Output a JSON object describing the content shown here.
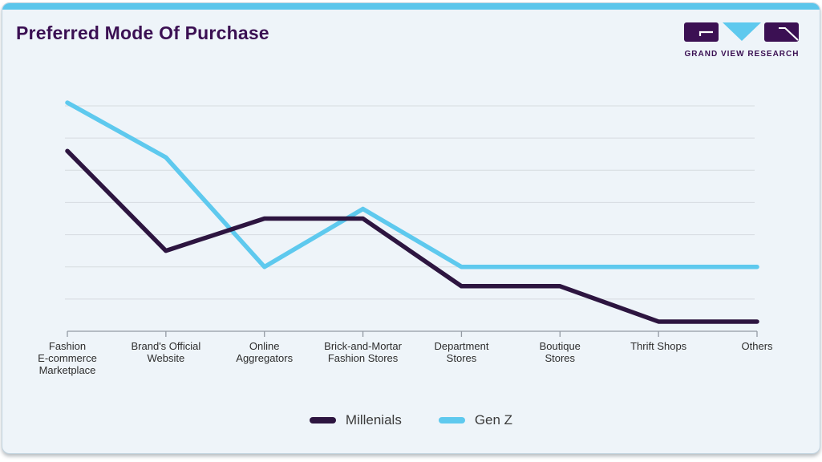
{
  "logo": {
    "name": "GRAND VIEW RESEARCH"
  },
  "colors": {
    "top_bar": "#5bc6eb",
    "title": "#3b1053",
    "card_background": "#eef4f9",
    "gridline": "#d6dbe0",
    "axis": "#939aa3",
    "millenials_line": "#2d1540",
    "genz_line": "#5ec9ee"
  },
  "chart_data": {
    "type": "line",
    "title": "Preferred Mode Of Purchase",
    "categories": [
      "Fashion E-commerce Marketplace",
      "Brand's Official Website",
      "Online Aggregators",
      "Brick-and-Mortar Fashion Stores",
      "Department Stores",
      "Boutique Stores",
      "Thrift Shops",
      "Others"
    ],
    "category_label_lines": [
      [
        "Fashion",
        "E-commerce",
        "Marketplace"
      ],
      [
        "Brand's Official",
        "Website"
      ],
      [
        "Online",
        "Aggregators"
      ],
      [
        "Brick-and-Mortar",
        "Fashion Stores"
      ],
      [
        "Department",
        "Stores"
      ],
      [
        "Boutique",
        "Stores"
      ],
      [
        "Thrift Shops"
      ],
      [
        "Others"
      ]
    ],
    "series": [
      {
        "name": "Millenials",
        "color": "#2d1540",
        "values": [
          28,
          12.5,
          17.5,
          17.5,
          7,
          7,
          1.5,
          1.5
        ]
      },
      {
        "name": "Gen Z",
        "color": "#5ec9ee",
        "values": [
          35.5,
          27,
          10,
          19,
          10,
          10,
          10,
          10
        ]
      }
    ],
    "xlabel": "",
    "ylabel": "",
    "ylim": [
      0,
      37.5
    ],
    "gridline_interval": 5,
    "grid": true,
    "y_axis_tick_labels_visible": false,
    "legend_position": "bottom",
    "note": "values estimated from unlabeled gridlines (5 units per gridline)"
  }
}
